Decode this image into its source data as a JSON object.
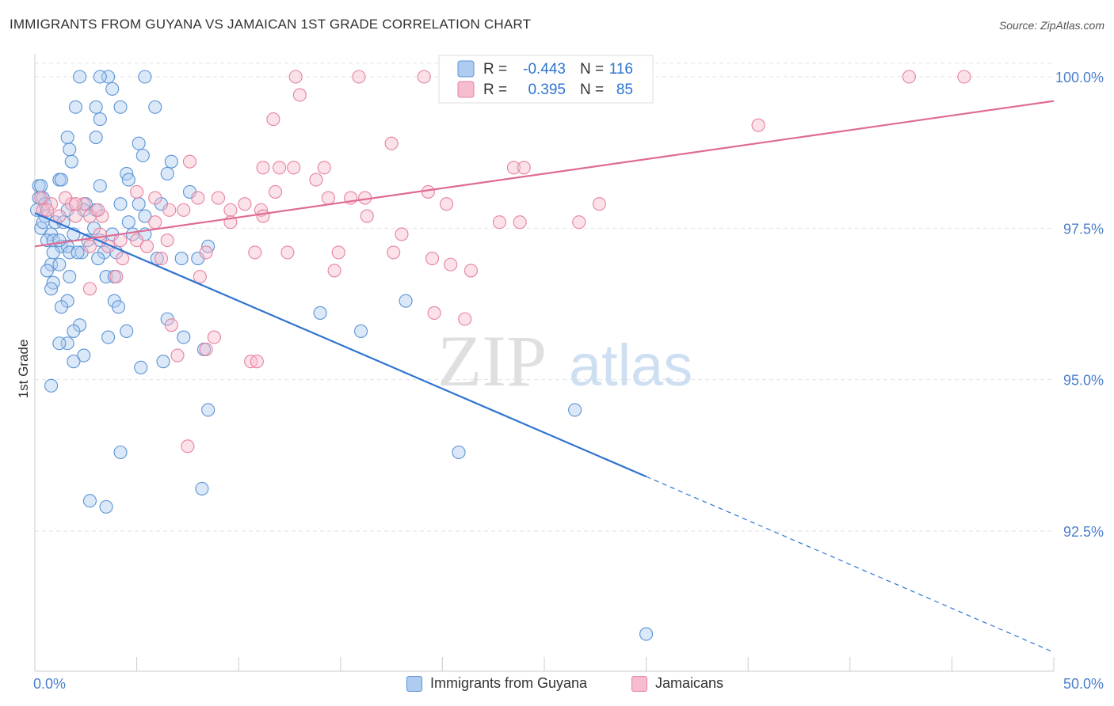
{
  "title": "IMMIGRANTS FROM GUYANA VS JAMAICAN 1ST GRADE CORRELATION CHART",
  "source": "Source: ZipAtlas.com",
  "watermark": {
    "zip": "ZIP",
    "atlas": "atlas"
  },
  "legend_top": [
    {
      "r_label": "R =",
      "r_value": "-0.443",
      "n_label": "N =",
      "n_value": "116"
    },
    {
      "r_label": "R =",
      "r_value": "0.395",
      "n_label": "N =",
      "n_value": "85"
    }
  ],
  "legend_bottom": [
    "Immigrants from Guyana",
    "Jamaicans"
  ],
  "colors": {
    "blue_fill": "#aecbf0",
    "blue_stroke": "#5b93d6",
    "blue_line": "#2f74d0",
    "pink_fill": "#f7bccd",
    "pink_stroke": "#e6829f",
    "pink_line": "#e06b93",
    "tick_text": "#4a7fcb",
    "grid": "#e3e3e3"
  },
  "chart_data": {
    "type": "scatter",
    "title": "IMMIGRANTS FROM GUYANA VS JAMAICAN 1ST GRADE CORRELATION CHART",
    "xlabel": "",
    "ylabel": "1st Grade",
    "xlim": [
      0,
      50
    ],
    "ylim": [
      90.2,
      100.2
    ],
    "x_tick_labels": [
      "0.0%",
      "50.0%"
    ],
    "y_ticks": [
      92.5,
      95.0,
      97.5,
      100.0
    ],
    "y_tick_labels": [
      "92.5%",
      "95.0%",
      "97.5%",
      "100.0%"
    ],
    "grid": true,
    "legend_position": "top-center",
    "series": [
      {
        "name": "Immigrants from Guyana",
        "color": "#5b93d6",
        "r": -0.443,
        "n": 116,
        "trend": {
          "x": [
            0,
            30
          ],
          "y": [
            97.75,
            93.4
          ],
          "dashed_to": [
            50,
            90.5
          ]
        },
        "points": [
          [
            2.2,
            100
          ],
          [
            3.6,
            100
          ],
          [
            5.4,
            100
          ],
          [
            3.2,
            100
          ],
          [
            3.8,
            99.8
          ],
          [
            2.0,
            99.5
          ],
          [
            3.0,
            99.5
          ],
          [
            4.2,
            99.5
          ],
          [
            5.9,
            99.5
          ],
          [
            3.2,
            99.3
          ],
          [
            1.6,
            99.0
          ],
          [
            3.0,
            99.0
          ],
          [
            5.1,
            98.9
          ],
          [
            1.7,
            98.8
          ],
          [
            5.3,
            98.7
          ],
          [
            1.8,
            98.6
          ],
          [
            6.7,
            98.6
          ],
          [
            4.5,
            98.4
          ],
          [
            6.5,
            98.4
          ],
          [
            1.2,
            98.3
          ],
          [
            1.3,
            98.3
          ],
          [
            4.6,
            98.3
          ],
          [
            3.2,
            98.2
          ],
          [
            0.2,
            98.2
          ],
          [
            0.3,
            98.2
          ],
          [
            7.6,
            98.1
          ],
          [
            0.4,
            98.0
          ],
          [
            0.2,
            98.0
          ],
          [
            6.2,
            97.9
          ],
          [
            2.5,
            97.9
          ],
          [
            0.5,
            97.9
          ],
          [
            4.2,
            97.9
          ],
          [
            5.1,
            97.9
          ],
          [
            0.1,
            97.8
          ],
          [
            1.6,
            97.8
          ],
          [
            2.4,
            97.8
          ],
          [
            3.0,
            97.8
          ],
          [
            5.4,
            97.7
          ],
          [
            0.5,
            97.7
          ],
          [
            1.0,
            97.6
          ],
          [
            1.4,
            97.6
          ],
          [
            4.6,
            97.6
          ],
          [
            2.9,
            97.5
          ],
          [
            0.3,
            97.5
          ],
          [
            0.8,
            97.4
          ],
          [
            1.9,
            97.4
          ],
          [
            3.8,
            97.4
          ],
          [
            4.8,
            97.4
          ],
          [
            5.4,
            97.4
          ],
          [
            2.6,
            97.3
          ],
          [
            3.2,
            97.3
          ],
          [
            0.6,
            97.3
          ],
          [
            0.9,
            97.3
          ],
          [
            1.3,
            97.2
          ],
          [
            1.6,
            97.2
          ],
          [
            8.5,
            97.2
          ],
          [
            0.9,
            97.1
          ],
          [
            2.3,
            97.1
          ],
          [
            3.4,
            97.1
          ],
          [
            4.0,
            97.1
          ],
          [
            1.7,
            97.1
          ],
          [
            6.0,
            97.0
          ],
          [
            7.2,
            97.0
          ],
          [
            8.0,
            97.0
          ],
          [
            3.1,
            97.0
          ],
          [
            0.8,
            96.9
          ],
          [
            1.2,
            96.9
          ],
          [
            0.6,
            96.8
          ],
          [
            3.5,
            96.7
          ],
          [
            3.9,
            96.7
          ],
          [
            1.7,
            96.7
          ],
          [
            0.9,
            96.6
          ],
          [
            0.8,
            96.5
          ],
          [
            1.6,
            96.3
          ],
          [
            3.9,
            96.3
          ],
          [
            1.3,
            96.2
          ],
          [
            4.1,
            96.2
          ],
          [
            18.2,
            96.3
          ],
          [
            14.0,
            96.1
          ],
          [
            6.5,
            96.0
          ],
          [
            2.2,
            95.9
          ],
          [
            1.9,
            95.8
          ],
          [
            4.5,
            95.8
          ],
          [
            7.3,
            95.7
          ],
          [
            3.6,
            95.7
          ],
          [
            1.6,
            95.6
          ],
          [
            1.2,
            95.6
          ],
          [
            16.0,
            95.8
          ],
          [
            8.3,
            95.5
          ],
          [
            2.4,
            95.4
          ],
          [
            1.9,
            95.3
          ],
          [
            6.3,
            95.3
          ],
          [
            5.2,
            95.2
          ],
          [
            0.8,
            94.9
          ],
          [
            8.5,
            94.5
          ],
          [
            26.5,
            94.5
          ],
          [
            4.2,
            93.8
          ],
          [
            20.8,
            93.8
          ],
          [
            8.2,
            93.2
          ],
          [
            2.7,
            93.0
          ],
          [
            3.5,
            92.9
          ],
          [
            30.0,
            90.8
          ],
          [
            2.1,
            97.1
          ],
          [
            0.4,
            97.6
          ],
          [
            1.2,
            97.3
          ]
        ]
      },
      {
        "name": "Jamaicans",
        "color": "#e6829f",
        "r": 0.395,
        "n": 85,
        "trend": {
          "x": [
            0,
            50
          ],
          "y": [
            97.2,
            99.6
          ]
        },
        "points": [
          [
            12.8,
            100
          ],
          [
            15.9,
            100
          ],
          [
            19.1,
            100
          ],
          [
            21.7,
            100
          ],
          [
            42.9,
            100
          ],
          [
            45.6,
            100
          ],
          [
            13.0,
            99.7
          ],
          [
            11.7,
            99.3
          ],
          [
            35.5,
            99.2
          ],
          [
            17.5,
            98.9
          ],
          [
            7.6,
            98.6
          ],
          [
            11.2,
            98.5
          ],
          [
            12.7,
            98.5
          ],
          [
            14.2,
            98.5
          ],
          [
            23.5,
            98.5
          ],
          [
            13.8,
            98.3
          ],
          [
            24.0,
            98.5
          ],
          [
            11.8,
            98.1
          ],
          [
            19.3,
            98.1
          ],
          [
            5.0,
            98.1
          ],
          [
            5.9,
            98.0
          ],
          [
            8.0,
            98.0
          ],
          [
            9.0,
            98.0
          ],
          [
            14.4,
            98.0
          ],
          [
            15.5,
            98.0
          ],
          [
            20.2,
            97.9
          ],
          [
            0.8,
            97.9
          ],
          [
            1.8,
            97.9
          ],
          [
            2.4,
            97.9
          ],
          [
            27.7,
            97.9
          ],
          [
            6.6,
            97.8
          ],
          [
            7.3,
            97.8
          ],
          [
            9.6,
            97.8
          ],
          [
            10.3,
            97.9
          ],
          [
            11.1,
            97.8
          ],
          [
            0.4,
            97.8
          ],
          [
            0.6,
            97.8
          ],
          [
            1.2,
            97.7
          ],
          [
            2.0,
            97.7
          ],
          [
            2.7,
            97.7
          ],
          [
            3.3,
            97.7
          ],
          [
            16.3,
            97.7
          ],
          [
            11.2,
            97.7
          ],
          [
            22.8,
            97.6
          ],
          [
            23.8,
            97.6
          ],
          [
            26.7,
            97.6
          ],
          [
            9.6,
            97.6
          ],
          [
            18.0,
            97.4
          ],
          [
            3.2,
            97.4
          ],
          [
            4.2,
            97.3
          ],
          [
            5.0,
            97.3
          ],
          [
            6.5,
            97.3
          ],
          [
            5.5,
            97.2
          ],
          [
            2.7,
            97.2
          ],
          [
            3.6,
            97.2
          ],
          [
            8.4,
            97.1
          ],
          [
            10.8,
            97.1
          ],
          [
            12.4,
            97.1
          ],
          [
            14.9,
            97.1
          ],
          [
            17.6,
            97.1
          ],
          [
            19.5,
            97.0
          ],
          [
            4.3,
            97.0
          ],
          [
            6.2,
            97.0
          ],
          [
            20.4,
            96.9
          ],
          [
            21.4,
            96.8
          ],
          [
            14.7,
            96.8
          ],
          [
            8.1,
            96.7
          ],
          [
            4.0,
            96.7
          ],
          [
            2.7,
            96.5
          ],
          [
            19.6,
            96.1
          ],
          [
            21.1,
            96.0
          ],
          [
            6.7,
            95.9
          ],
          [
            8.8,
            95.7
          ],
          [
            7.0,
            95.4
          ],
          [
            8.4,
            95.5
          ],
          [
            10.6,
            95.3
          ],
          [
            10.9,
            95.3
          ],
          [
            7.5,
            93.9
          ],
          [
            0.3,
            98.0
          ],
          [
            1.5,
            98.0
          ],
          [
            2.0,
            97.9
          ],
          [
            3.1,
            97.8
          ],
          [
            12.0,
            98.5
          ],
          [
            5.9,
            97.6
          ],
          [
            16.2,
            98.0
          ]
        ]
      }
    ]
  }
}
